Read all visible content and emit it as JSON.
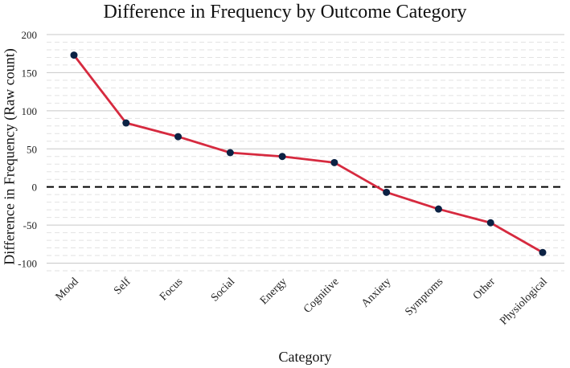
{
  "chart_data": {
    "type": "line",
    "title": "Difference in Frequency by Outcome Category",
    "xlabel": "Category",
    "ylabel": "Difference in Frequency  (Raw count)",
    "categories": [
      "Mood",
      "Self",
      "Focus",
      "Social",
      "Energy",
      "Cognitive",
      "Anxiety",
      "Symptoms",
      "Other",
      "Physiological"
    ],
    "values": [
      173,
      84,
      66,
      45,
      40,
      32,
      -7,
      -29,
      -47,
      -86
    ],
    "ylim": [
      -110,
      200
    ],
    "yticks": [
      -100,
      -50,
      0,
      50,
      100,
      150,
      200
    ],
    "reference_line": 0,
    "grid": true,
    "colors": {
      "line": "#d62a3f",
      "marker": "#0c2244",
      "reference": "#000000",
      "major_grid": "#c8c8c8",
      "minor_grid": "#e2e2e2"
    }
  }
}
